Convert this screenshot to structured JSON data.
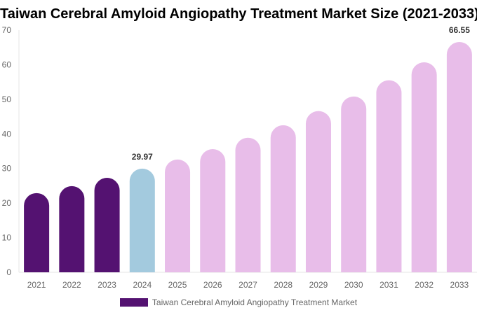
{
  "chart_data": {
    "type": "bar",
    "title": "Taiwan Cerebral Amyloid Angiopathy Treatment Market Size (2021-2033)",
    "categories": [
      "2021",
      "2022",
      "2023",
      "2024",
      "2025",
      "2026",
      "2027",
      "2028",
      "2029",
      "2030",
      "2031",
      "2032",
      "2033"
    ],
    "series": [
      {
        "name": "Taiwan Cerebral Amyloid Angiopathy Treatment Market",
        "values": [
          22.9,
          24.9,
          27.3,
          29.97,
          32.6,
          35.6,
          38.9,
          42.5,
          46.6,
          50.8,
          55.5,
          60.7,
          66.55
        ]
      }
    ],
    "data_labels": {
      "2024": "29.97",
      "2033": "66.55"
    },
    "yticks": [
      0,
      10,
      20,
      30,
      40,
      50,
      60,
      70
    ],
    "ylim": [
      0,
      70
    ],
    "xlabel": "",
    "ylabel": "",
    "grid": false,
    "legend_position": "bottom",
    "colors": {
      "historical": "#541271",
      "current": "#a3cade",
      "forecast": "#e8bde9"
    },
    "color_groups": [
      "historical",
      "historical",
      "historical",
      "current",
      "forecast",
      "forecast",
      "forecast",
      "forecast",
      "forecast",
      "forecast",
      "forecast",
      "forecast",
      "forecast"
    ]
  }
}
